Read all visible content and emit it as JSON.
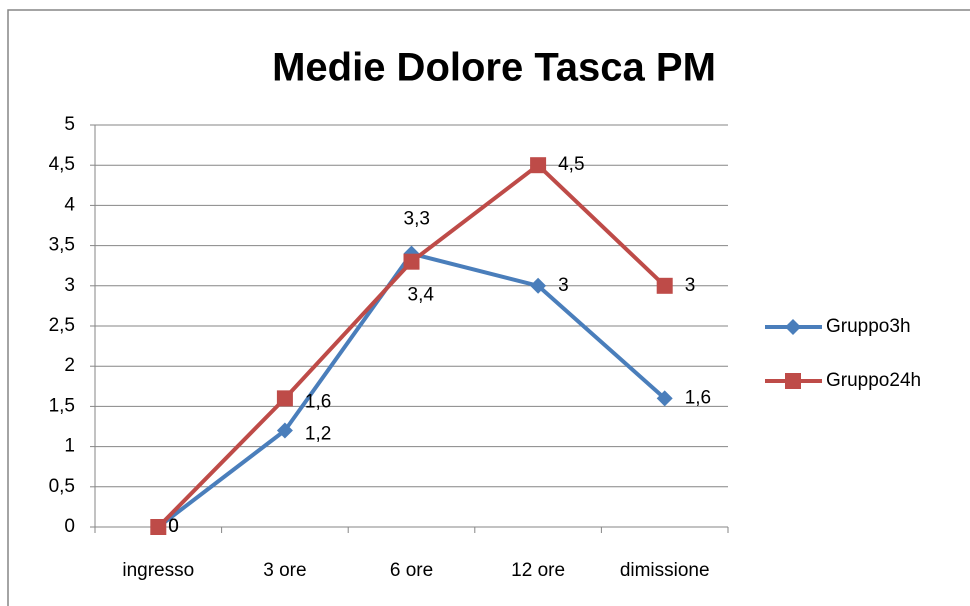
{
  "chart_data": {
    "type": "line",
    "title": "Medie Dolore Tasca PM",
    "categories": [
      "ingresso",
      "3 ore",
      "6 ore",
      "12 ore",
      "dimissione"
    ],
    "series": [
      {
        "name": "Gruppo3h",
        "color": "#4a7ebb",
        "marker": "diamond",
        "values": [
          0,
          1.2,
          3.4,
          3,
          1.6
        ],
        "value_labels": [
          "0",
          "1,2",
          "3,4",
          "3",
          "1,6"
        ]
      },
      {
        "name": "Gruppo24h",
        "color": "#be4b48",
        "marker": "square",
        "values": [
          0,
          1.6,
          3.3,
          4.5,
          3
        ],
        "value_labels": [
          "0",
          "1,6",
          "3,3",
          "4,5",
          "3"
        ]
      }
    ],
    "ylim": [
      0,
      5
    ],
    "yticks": [
      0,
      {
        "value": 0.5,
        "label": "0,5"
      },
      1,
      {
        "value": 1.5,
        "label": "1,5"
      },
      2,
      {
        "value": 2.5,
        "label": "2,5"
      },
      3,
      {
        "value": 3.5,
        "label": "3,5"
      },
      4,
      {
        "value": 4.5,
        "label": "4,5"
      },
      5
    ],
    "grid": true,
    "legend": "right"
  }
}
